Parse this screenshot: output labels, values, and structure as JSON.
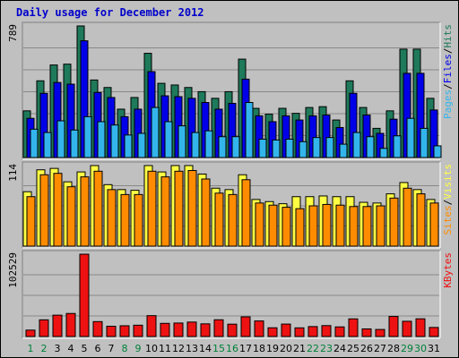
{
  "title": "Daily usage for December 2012",
  "colors": {
    "hits": "#1e7a5a",
    "files": "#0000e8",
    "pages": "#33b5ec",
    "visits": "#ffff44",
    "sites": "#ff8c00",
    "kbytes": "#ee1111",
    "frame": "#c0c0c0",
    "panel": "#c0c0c0",
    "grid": "#888888",
    "label_weekday": "#000000",
    "label_weekend": "#00803a"
  },
  "chart_data": {
    "type": "bar",
    "categories": [
      "1",
      "2",
      "3",
      "4",
      "5",
      "6",
      "7",
      "8",
      "9",
      "10",
      "11",
      "12",
      "13",
      "14",
      "15",
      "16",
      "17",
      "18",
      "19",
      "20",
      "21",
      "22",
      "23",
      "24",
      "25",
      "26",
      "27",
      "28",
      "29",
      "30",
      "31"
    ],
    "weekend_days": [
      "1",
      "2",
      "8",
      "9",
      "15",
      "16",
      "22",
      "23",
      "29",
      "30"
    ],
    "panels": [
      {
        "id": "hits_files_pages",
        "max_label": "789",
        "ylim": [
          0,
          789
        ],
        "legend": [
          "Pages",
          "Files",
          "Hits"
        ],
        "series": [
          {
            "name": "Hits",
            "values": [
              280,
              460,
              555,
              560,
              789,
              465,
              420,
              290,
              360,
              625,
              445,
              435,
              420,
              395,
              355,
              395,
              590,
              295,
              260,
              295,
              265,
              300,
              305,
              225,
              460,
              300,
              175,
              280,
              650,
              650,
              355
            ]
          },
          {
            "name": "Files",
            "values": [
              235,
              385,
              450,
              440,
              700,
              390,
              360,
              245,
              290,
              515,
              370,
              365,
              355,
              330,
              290,
              325,
              470,
              250,
              215,
              250,
              225,
              250,
              255,
              180,
              385,
              255,
              145,
              230,
              505,
              505,
              285
            ]
          },
          {
            "name": "Pages",
            "values": [
              170,
              150,
              220,
              165,
              245,
              215,
              195,
              135,
              145,
              300,
              215,
              190,
              150,
              160,
              125,
              125,
              330,
              110,
              105,
              110,
              95,
              120,
              120,
              80,
              150,
              125,
              55,
              130,
              235,
              175,
              70
            ]
          }
        ]
      },
      {
        "id": "visits_sites",
        "max_label": "114",
        "ylim": [
          0,
          114
        ],
        "legend": [
          "Sites",
          "Visits"
        ],
        "series": [
          {
            "name": "Visits",
            "values": [
              77,
              108,
              110,
              91,
              105,
              114,
              87,
              80,
              79,
              114,
              105,
              114,
              114,
              102,
              82,
              80,
              101,
              66,
              63,
              60,
              70,
              70,
              71,
              70,
              70,
              62,
              61,
              74,
              90,
              80,
              66
            ]
          },
          {
            "name": "Sites",
            "values": [
              70,
              101,
              103,
              84,
              98,
              106,
              80,
              73,
              73,
              106,
              98,
              106,
              107,
              95,
              75,
              73,
              94,
              61,
              58,
              55,
              53,
              57,
              59,
              58,
              56,
              56,
              57,
              68,
              82,
              74,
              61
            ]
          }
        ]
      },
      {
        "id": "kbytes",
        "max_label": "102529",
        "ylim": [
          0,
          102529
        ],
        "legend": [
          "KBytes"
        ],
        "series": [
          {
            "name": "KBytes",
            "values": [
              8000,
              20800,
              26600,
              28700,
              102529,
              18600,
              12800,
              13400,
              14100,
              26000,
              16400,
              16800,
              18000,
              15800,
              20900,
              15400,
              24500,
              19400,
              10900,
              15500,
              10800,
              12400,
              13600,
              12000,
              22000,
              9500,
              8800,
              25000,
              19000,
              22100,
              11300
            ]
          }
        ]
      }
    ]
  }
}
